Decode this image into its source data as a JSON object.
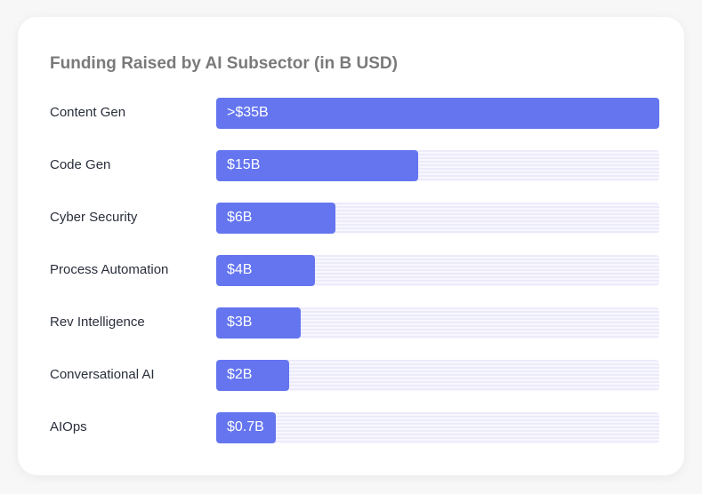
{
  "chart_data": {
    "type": "bar",
    "orientation": "horizontal",
    "title": "Funding Raised by AI Subsector (in B USD)",
    "categories": [
      "Content Gen",
      "Code Gen",
      "Cyber Security",
      "Process Automation",
      "Rev Intelligence",
      "Conversational AI",
      "AIOps"
    ],
    "values": [
      35,
      15,
      6,
      4,
      3,
      2,
      0.7
    ],
    "data_labels": [
      ">$35B",
      "$15B",
      "$6B",
      "$4B",
      "$3B",
      "$2B",
      "$0.7B"
    ],
    "fill_percent": [
      100,
      45.6,
      26.9,
      22.3,
      19.1,
      16.5,
      13.5
    ],
    "bar_color": "#6475ef",
    "track_color": "#ecebfb",
    "grid": false,
    "legend": "none"
  }
}
